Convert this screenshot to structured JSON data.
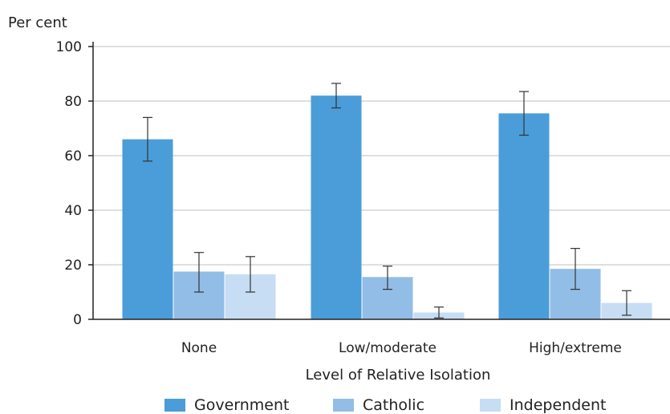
{
  "chart_data": {
    "type": "bar",
    "ylabel": "Per cent",
    "xlabel": "Level of Relative Isolation",
    "ylim": [
      0,
      100
    ],
    "yticks": [
      0,
      20,
      40,
      60,
      80,
      100
    ],
    "grid": true,
    "legend_position": "bottom",
    "categories": [
      "None",
      "Low/moderate",
      "High/extreme"
    ],
    "series": [
      {
        "name": "Government",
        "color": "#4a9dd8",
        "values": [
          66,
          82,
          75.5
        ],
        "error_low": [
          58,
          77.5,
          67.5
        ],
        "error_high": [
          74,
          86.5,
          83.5
        ]
      },
      {
        "name": "Catholic",
        "color": "#92bde6",
        "values": [
          17.5,
          15.5,
          18.5
        ],
        "error_low": [
          10,
          11,
          11
        ],
        "error_high": [
          24.5,
          19.5,
          26
        ]
      },
      {
        "name": "Independent",
        "color": "#c6ddf3",
        "values": [
          16.5,
          2.5,
          6
        ],
        "error_low": [
          10,
          0.5,
          1.5
        ],
        "error_high": [
          23,
          4.5,
          10.5
        ]
      }
    ]
  }
}
